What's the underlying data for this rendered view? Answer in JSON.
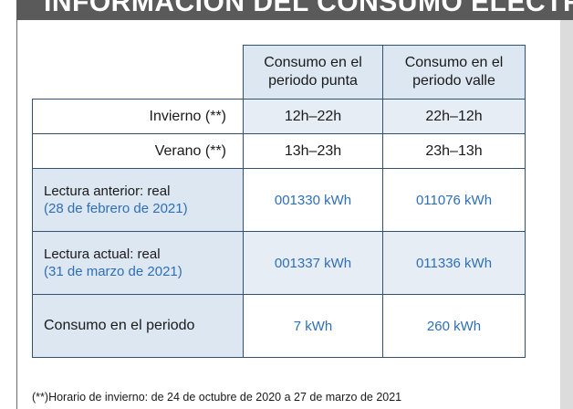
{
  "banner": {
    "title": "INFORMACIÓN DEL CONSUMO ELÉCTRICO"
  },
  "table": {
    "headers": {
      "punta": "Consumo en el periodo punta",
      "valle": "Consumo en el periodo valle"
    },
    "schedule": [
      {
        "label": "Invierno",
        "mark": "(**)",
        "punta": "12h–22h",
        "valle": "22h–12h"
      },
      {
        "label": "Verano",
        "mark": "(**)",
        "punta": "13h–23h",
        "valle": "23h–13h"
      }
    ],
    "readings": [
      {
        "label": "Lectura anterior: real",
        "date": "(28 de febrero de 2021)",
        "punta": "001330 kWh",
        "valle": "011076 kWh"
      },
      {
        "label": "Lectura actual: real",
        "date": "(31 de marzo de 2021)",
        "punta": "001337 kWh",
        "valle": "011336 kWh"
      }
    ],
    "total": {
      "label": "Consumo en el periodo",
      "punta": "7 kWh",
      "valle": "260 kWh"
    }
  },
  "footnote": {
    "mark": "(**)",
    "text": "Horario de invierno: de 24 de octubre de 2020 a 27 de marzo de 2021"
  }
}
